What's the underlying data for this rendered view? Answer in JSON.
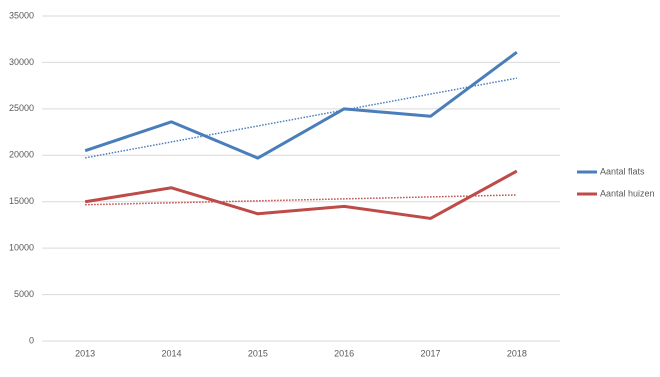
{
  "chart_data": {
    "type": "line",
    "categories": [
      "2013",
      "2014",
      "2015",
      "2016",
      "2017",
      "2018"
    ],
    "series": [
      {
        "name": "Aantal flats",
        "color": "#4a7ebb",
        "values": [
          20500,
          23600,
          19700,
          25000,
          24200,
          31100
        ],
        "trendline": true
      },
      {
        "name": "Aantal huizen",
        "color": "#be4b48",
        "values": [
          15000,
          16500,
          13700,
          14500,
          13200,
          18300
        ],
        "trendline": true
      }
    ],
    "ylim": [
      0,
      35000
    ],
    "yticks": [
      0,
      5000,
      10000,
      15000,
      20000,
      25000,
      30000,
      35000
    ],
    "grid": true,
    "legend": "right"
  }
}
